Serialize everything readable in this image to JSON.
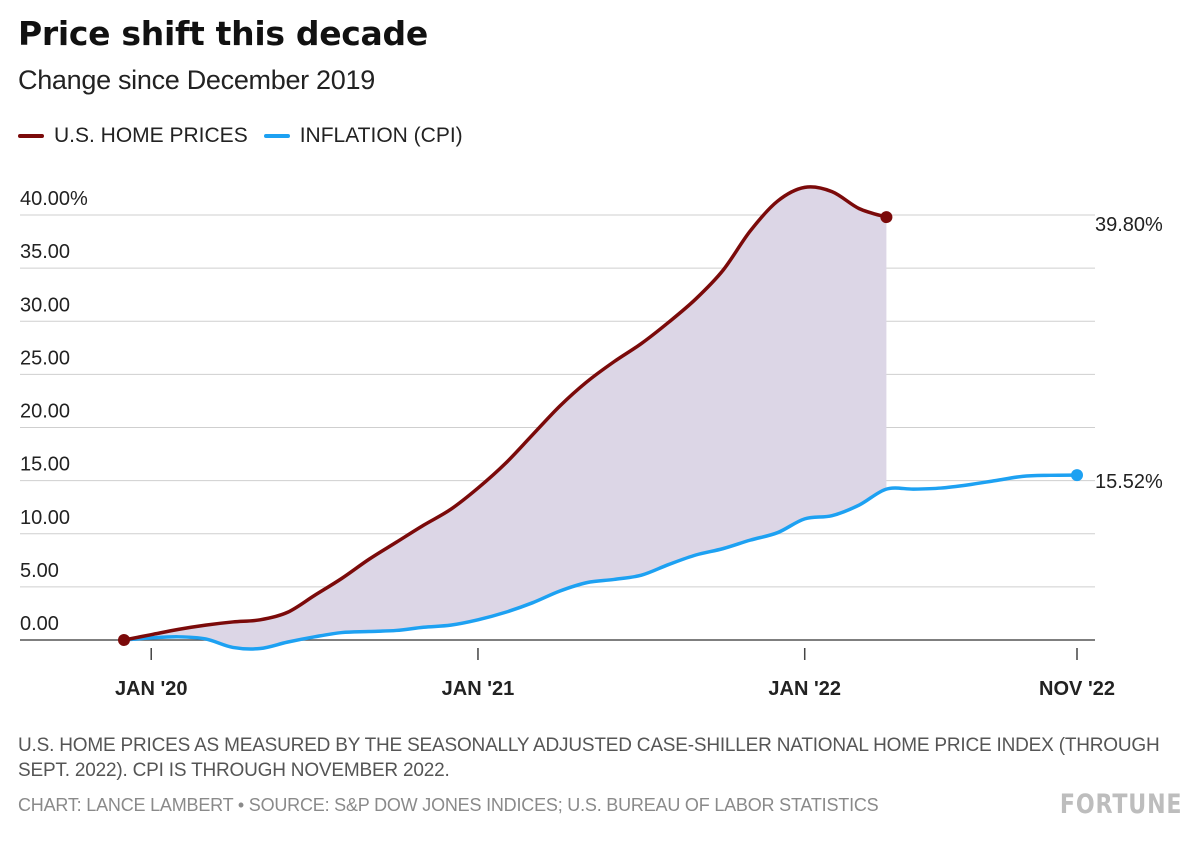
{
  "title": "Price shift this decade",
  "subtitle": "Change since December 2019",
  "legend": [
    {
      "label": "U.S. HOME PRICES",
      "color": "#7b0a0a"
    },
    {
      "label": "INFLATION (CPI)",
      "color": "#1da1f2"
    }
  ],
  "note": "U.S. HOME PRICES AS MEASURED BY THE SEASONALLY ADJUSTED CASE-SHILLER NATIONAL HOME PRICE INDEX (THROUGH SEPT. 2022). CPI IS THROUGH NOVEMBER 2022.",
  "credit": "CHART: LANCE LAMBERT • SOURCE: S&P DOW JONES INDICES; U.S. BUREAU OF LABOR STATISTICS",
  "logo": "FORTUNE",
  "chart_data": {
    "type": "line",
    "title": "Price shift this decade",
    "subtitle": "Change since December 2019",
    "xlabel": "",
    "ylabel": "",
    "x_start": "Dec 2019",
    "ylim": [
      0,
      40
    ],
    "y_ticks": [
      0,
      5,
      10,
      15,
      20,
      25,
      30,
      35,
      40
    ],
    "y_tick_labels": [
      "0.00",
      "5.00",
      "10.00",
      "15.00",
      "20.00",
      "25.00",
      "30.00",
      "35.00",
      "40.00%"
    ],
    "x_ticks": [
      {
        "label": "JAN '20",
        "month": 1
      },
      {
        "label": "JAN '21",
        "month": 13
      },
      {
        "label": "JAN '22",
        "month": 25
      },
      {
        "label": "NOV '22",
        "month": 35
      }
    ],
    "grid": true,
    "fill_between": {
      "color": "#dcd6e6"
    },
    "series": [
      {
        "name": "U.S. HOME PRICES",
        "color": "#7b0a0a",
        "end_label": "39.80%",
        "values": [
          0,
          0.5,
          1.0,
          1.4,
          1.7,
          1.9,
          2.6,
          4.2,
          5.8,
          7.6,
          9.2,
          10.8,
          12.3,
          14.3,
          16.6,
          19.3,
          22.0,
          24.3,
          26.2,
          27.9,
          29.9,
          32.1,
          34.8,
          38.5,
          41.3,
          42.6,
          42.2,
          40.6,
          39.8
        ]
      },
      {
        "name": "INFLATION (CPI)",
        "color": "#1da1f2",
        "end_label": "15.52%",
        "values": [
          0,
          0.2,
          0.3,
          0.1,
          -0.7,
          -0.8,
          -0.2,
          0.3,
          0.7,
          0.8,
          0.9,
          1.2,
          1.4,
          1.9,
          2.6,
          3.5,
          4.6,
          5.4,
          5.7,
          6.1,
          7.1,
          8.0,
          8.6,
          9.4,
          10.1,
          11.4,
          11.7,
          12.7,
          14.2,
          14.2,
          14.3,
          14.6,
          15.0,
          15.4,
          15.5,
          15.52
        ]
      }
    ]
  }
}
